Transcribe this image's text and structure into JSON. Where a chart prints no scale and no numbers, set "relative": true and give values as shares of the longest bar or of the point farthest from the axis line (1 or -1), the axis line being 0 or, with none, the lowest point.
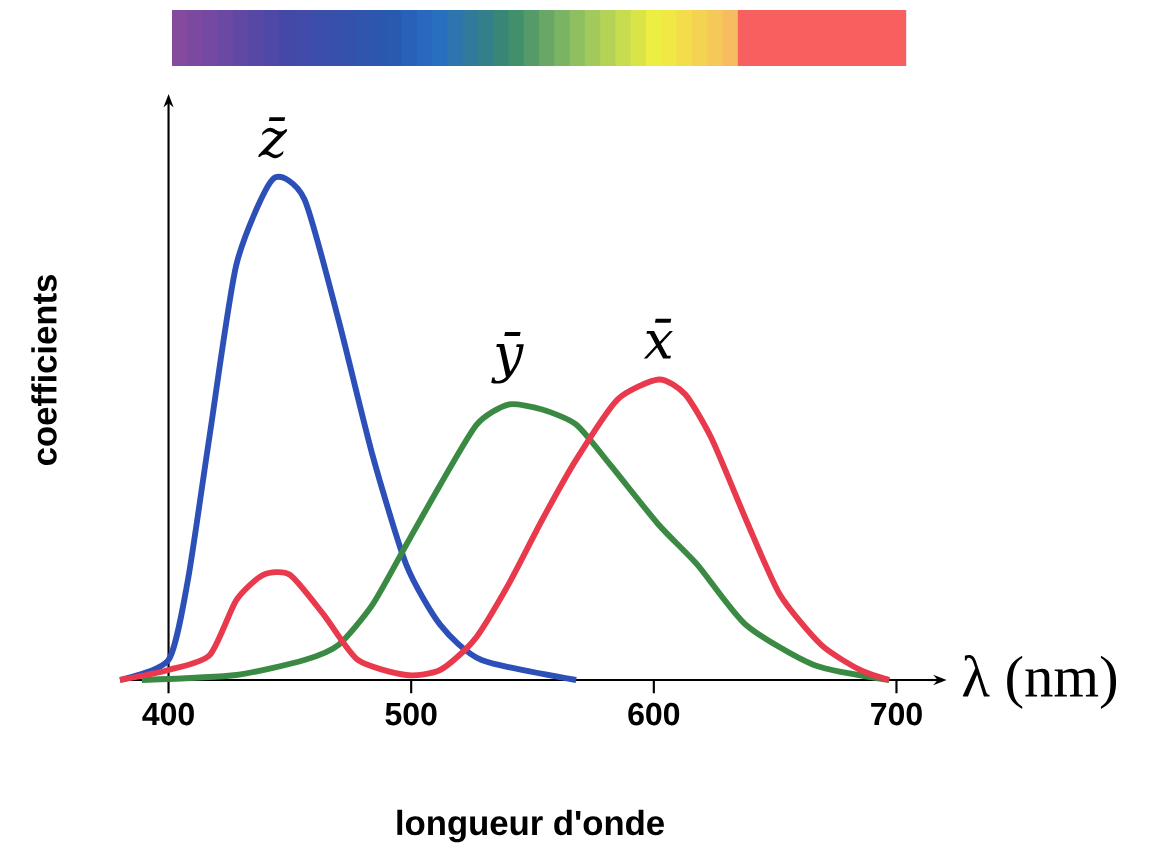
{
  "chart_data": {
    "type": "line",
    "relative": true,
    "xlabel": "longueur d'onde",
    "ylabel": "coefficients",
    "annotations": [
      "λ (nm)"
    ],
    "xlim": [
      380,
      713
    ],
    "xticks": [
      400,
      500,
      600,
      700
    ],
    "series": [
      {
        "name": "z̄",
        "color": "#2c50b8",
        "x": [
          380,
          400,
          408,
          417,
          428,
          443,
          456,
          470,
          484,
          498,
          512,
          529,
          568
        ],
        "values": [
          0,
          0.04,
          0.2,
          0.49,
          0.83,
          1.0,
          0.96,
          0.72,
          0.45,
          0.23,
          0.11,
          0.04,
          0
        ]
      },
      {
        "name": "ȳ",
        "color": "#3a8a44",
        "x": [
          389,
          428,
          456,
          470,
          484,
          498,
          512,
          527,
          540,
          554,
          568,
          582,
          602,
          618,
          638,
          666,
          697
        ],
        "values": [
          0,
          0.01,
          0.04,
          0.07,
          0.15,
          0.27,
          0.39,
          0.51,
          0.55,
          0.54,
          0.51,
          0.43,
          0.31,
          0.23,
          0.11,
          0.03,
          0
        ]
      },
      {
        "name": "x̄",
        "color": "#e83a4c",
        "x": [
          380,
          400,
          417,
          428,
          439,
          450,
          464,
          478,
          498,
          512,
          526,
          540,
          554,
          568,
          585,
          602,
          613,
          624,
          638,
          652,
          669,
          685,
          697
        ],
        "values": [
          0,
          0.02,
          0.05,
          0.16,
          0.21,
          0.21,
          0.13,
          0.04,
          0.01,
          0.02,
          0.08,
          0.19,
          0.32,
          0.44,
          0.56,
          0.6,
          0.57,
          0.48,
          0.32,
          0.17,
          0.07,
          0.02,
          0
        ]
      }
    ]
  }
}
